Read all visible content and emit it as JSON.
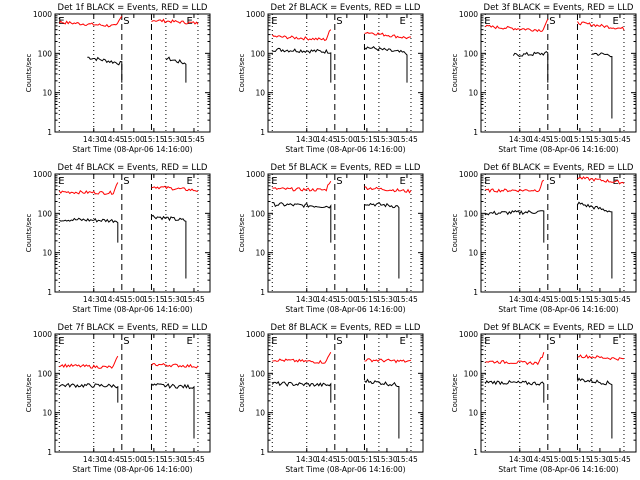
{
  "chart_data": [
    {
      "type": "line",
      "title": "Det 1f BLACK = Events, RED = LLD",
      "xlabel": "Start Time (08-Apr-06 14:16:00)",
      "ylabel": "Counts/sec",
      "yscale": "log",
      "ylim": [
        1,
        1000
      ],
      "x_ticks": [
        "14:30",
        "14:45",
        "15:00",
        "15:15",
        "15:30",
        "15:45"
      ],
      "markers": [
        "E",
        "S",
        "E"
      ],
      "series": [
        {
          "name": "Events",
          "color": "#000000",
          "segments": [
            {
              "x": [
                14.42,
                14.85
              ],
              "y": [
                80,
                55
              ]
            },
            {
              "x": [
                15.4,
                15.65
              ],
              "y": [
                75,
                55
              ]
            }
          ]
        },
        {
          "name": "LLD",
          "color": "#ff0000",
          "segments": [
            {
              "x": [
                14.07,
                14.85
              ],
              "y": [
                620,
                480
              ]
            },
            {
              "x": [
                15.22,
                15.8
              ],
              "y": [
                700,
                580
              ]
            }
          ]
        }
      ]
    },
    {
      "type": "line",
      "title": "Det 2f BLACK = Events, RED = LLD",
      "xlabel": "Start Time (08-Apr-06 14:16:00)",
      "ylabel": "Counts/sec",
      "yscale": "log",
      "ylim": [
        1,
        1000
      ],
      "x_ticks": [
        "14:30",
        "14:45",
        "15:00",
        "15:15",
        "15:30",
        "15:45"
      ],
      "markers": [
        "E",
        "S",
        "E"
      ],
      "series": [
        {
          "name": "Events",
          "color": "#000000",
          "segments": [
            {
              "x": [
                14.07,
                14.8
              ],
              "y": [
                125,
                110
              ]
            },
            {
              "x": [
                15.22,
                15.75
              ],
              "y": [
                145,
                100
              ]
            }
          ]
        },
        {
          "name": "LLD",
          "color": "#ff0000",
          "segments": [
            {
              "x": [
                14.07,
                14.8
              ],
              "y": [
                270,
                220
              ]
            },
            {
              "x": [
                15.22,
                15.8
              ],
              "y": [
                350,
                240
              ]
            }
          ]
        }
      ]
    },
    {
      "type": "line",
      "title": "Det 3f BLACK = Events, RED = LLD",
      "xlabel": "Start Time (08-Apr-06 14:16:00)",
      "ylabel": "Counts/sec",
      "yscale": "log",
      "ylim": [
        1,
        1000
      ],
      "x_ticks": [
        "14:30",
        "14:45",
        "15:00",
        "15:15",
        "15:30",
        "15:45"
      ],
      "markers": [
        "E",
        "S",
        "E"
      ],
      "series": [
        {
          "name": "Events",
          "color": "#000000",
          "segments": [
            {
              "x": [
                14.42,
                14.85
              ],
              "y": [
                90,
                100
              ]
            },
            {
              "x": [
                15.4,
                15.65
              ],
              "y": [
                100,
                90
              ]
            }
          ]
        },
        {
          "name": "LLD",
          "color": "#ff0000",
          "segments": [
            {
              "x": [
                14.07,
                14.85
              ],
              "y": [
                480,
                380
              ]
            },
            {
              "x": [
                15.22,
                15.8
              ],
              "y": [
                600,
                420
              ]
            }
          ]
        }
      ]
    },
    {
      "type": "line",
      "title": "Det 4f BLACK = Events, RED = LLD",
      "xlabel": "Start Time (08-Apr-06 14:16:00)",
      "ylabel": "Counts/sec",
      "yscale": "log",
      "ylim": [
        1,
        1000
      ],
      "x_ticks": [
        "14:30",
        "14:45",
        "15:00",
        "15:15",
        "15:30",
        "15:45"
      ],
      "markers": [
        "E",
        "S",
        "E"
      ],
      "series": [
        {
          "name": "Events",
          "color": "#000000",
          "segments": [
            {
              "x": [
                14.07,
                14.8
              ],
              "y": [
                70,
                65
              ]
            },
            {
              "x": [
                15.22,
                15.65
              ],
              "y": [
                85,
                65
              ]
            }
          ]
        },
        {
          "name": "LLD",
          "color": "#ff0000",
          "segments": [
            {
              "x": [
                14.07,
                14.8
              ],
              "y": [
                350,
                330
              ]
            },
            {
              "x": [
                15.22,
                15.8
              ],
              "y": [
                480,
                380
              ]
            }
          ]
        }
      ]
    },
    {
      "type": "line",
      "title": "Det 5f BLACK = Events, RED = LLD",
      "xlabel": "Start Time (08-Apr-06 14:16:00)",
      "ylabel": "Counts/sec",
      "yscale": "log",
      "ylim": [
        1,
        1000
      ],
      "x_ticks": [
        "14:30",
        "14:45",
        "15:00",
        "15:15",
        "15:30",
        "15:45"
      ],
      "markers": [
        "E",
        "S",
        "E"
      ],
      "series": [
        {
          "name": "Events",
          "color": "#000000",
          "segments": [
            {
              "x": [
                14.07,
                14.8
              ],
              "y": [
                170,
                150
              ]
            },
            {
              "x": [
                15.22,
                15.65
              ],
              "y": [
                180,
                150
              ]
            }
          ]
        },
        {
          "name": "LLD",
          "color": "#ff0000",
          "segments": [
            {
              "x": [
                14.07,
                14.8
              ],
              "y": [
                420,
                390
              ]
            },
            {
              "x": [
                15.22,
                15.8
              ],
              "y": [
                450,
                360
              ]
            }
          ]
        }
      ]
    },
    {
      "type": "line",
      "title": "Det 6f BLACK = Events, RED = LLD",
      "xlabel": "Start Time (08-Apr-06 14:16:00)",
      "ylabel": "Counts/sec",
      "yscale": "log",
      "ylim": [
        1,
        1000
      ],
      "x_ticks": [
        "14:30",
        "14:45",
        "15:00",
        "15:15",
        "15:30",
        "15:45"
      ],
      "markers": [
        "E",
        "S",
        "E"
      ],
      "series": [
        {
          "name": "Events",
          "color": "#000000",
          "segments": [
            {
              "x": [
                14.07,
                14.8
              ],
              "y": [
                100,
                110
              ]
            },
            {
              "x": [
                15.22,
                15.65
              ],
              "y": [
                180,
                110
              ]
            }
          ]
        },
        {
          "name": "LLD",
          "color": "#ff0000",
          "segments": [
            {
              "x": [
                14.07,
                14.8
              ],
              "y": [
                380,
                390
              ]
            },
            {
              "x": [
                15.22,
                15.8
              ],
              "y": [
                800,
                600
              ]
            }
          ]
        }
      ]
    },
    {
      "type": "line",
      "title": "Det 7f BLACK = Events, RED = LLD",
      "xlabel": "Start Time (08-Apr-06 14:16:00)",
      "ylabel": "Counts/sec",
      "yscale": "log",
      "ylim": [
        1,
        1000
      ],
      "x_ticks": [
        "14:30",
        "14:45",
        "15:00",
        "15:15",
        "15:30",
        "15:45"
      ],
      "markers": [
        "E",
        "S",
        "E"
      ],
      "series": [
        {
          "name": "Events",
          "color": "#000000",
          "segments": [
            {
              "x": [
                14.07,
                14.8
              ],
              "y": [
                50,
                48
              ]
            },
            {
              "x": [
                15.22,
                15.75
              ],
              "y": [
                50,
                45
              ]
            }
          ]
        },
        {
          "name": "LLD",
          "color": "#ff0000",
          "segments": [
            {
              "x": [
                14.07,
                14.8
              ],
              "y": [
                160,
                140
              ]
            },
            {
              "x": [
                15.22,
                15.8
              ],
              "y": [
                170,
                150
              ]
            }
          ]
        }
      ]
    },
    {
      "type": "line",
      "title": "Det 8f BLACK = Events, RED = LLD",
      "xlabel": "Start Time (08-Apr-06 14:16:00)",
      "ylabel": "Counts/sec",
      "yscale": "log",
      "ylim": [
        1,
        1000
      ],
      "x_ticks": [
        "14:30",
        "14:45",
        "15:00",
        "15:15",
        "15:30",
        "15:45"
      ],
      "markers": [
        "E",
        "S",
        "E"
      ],
      "series": [
        {
          "name": "Events",
          "color": "#000000",
          "segments": [
            {
              "x": [
                14.07,
                14.8
              ],
              "y": [
                55,
                50
              ]
            },
            {
              "x": [
                15.22,
                15.65
              ],
              "y": [
                65,
                50
              ]
            }
          ]
        },
        {
          "name": "LLD",
          "color": "#ff0000",
          "segments": [
            {
              "x": [
                14.07,
                14.8
              ],
              "y": [
                220,
                190
              ]
            },
            {
              "x": [
                15.22,
                15.8
              ],
              "y": [
                220,
                200
              ]
            }
          ]
        }
      ]
    },
    {
      "type": "line",
      "title": "Det 9f BLACK = Events, RED = LLD",
      "xlabel": "Start Time (08-Apr-06 14:16:00)",
      "ylabel": "Counts/sec",
      "yscale": "log",
      "ylim": [
        1,
        1000
      ],
      "x_ticks": [
        "14:30",
        "14:45",
        "15:00",
        "15:15",
        "15:30",
        "15:45"
      ],
      "markers": [
        "E",
        "S",
        "E"
      ],
      "series": [
        {
          "name": "Events",
          "color": "#000000",
          "segments": [
            {
              "x": [
                14.07,
                14.8
              ],
              "y": [
                60,
                55
              ]
            },
            {
              "x": [
                15.22,
                15.65
              ],
              "y": [
                70,
                55
              ]
            }
          ]
        },
        {
          "name": "LLD",
          "color": "#ff0000",
          "segments": [
            {
              "x": [
                14.07,
                14.8
              ],
              "y": [
                200,
                180
              ]
            },
            {
              "x": [
                15.22,
                15.8
              ],
              "y": [
                280,
                230
              ]
            }
          ]
        }
      ]
    }
  ]
}
